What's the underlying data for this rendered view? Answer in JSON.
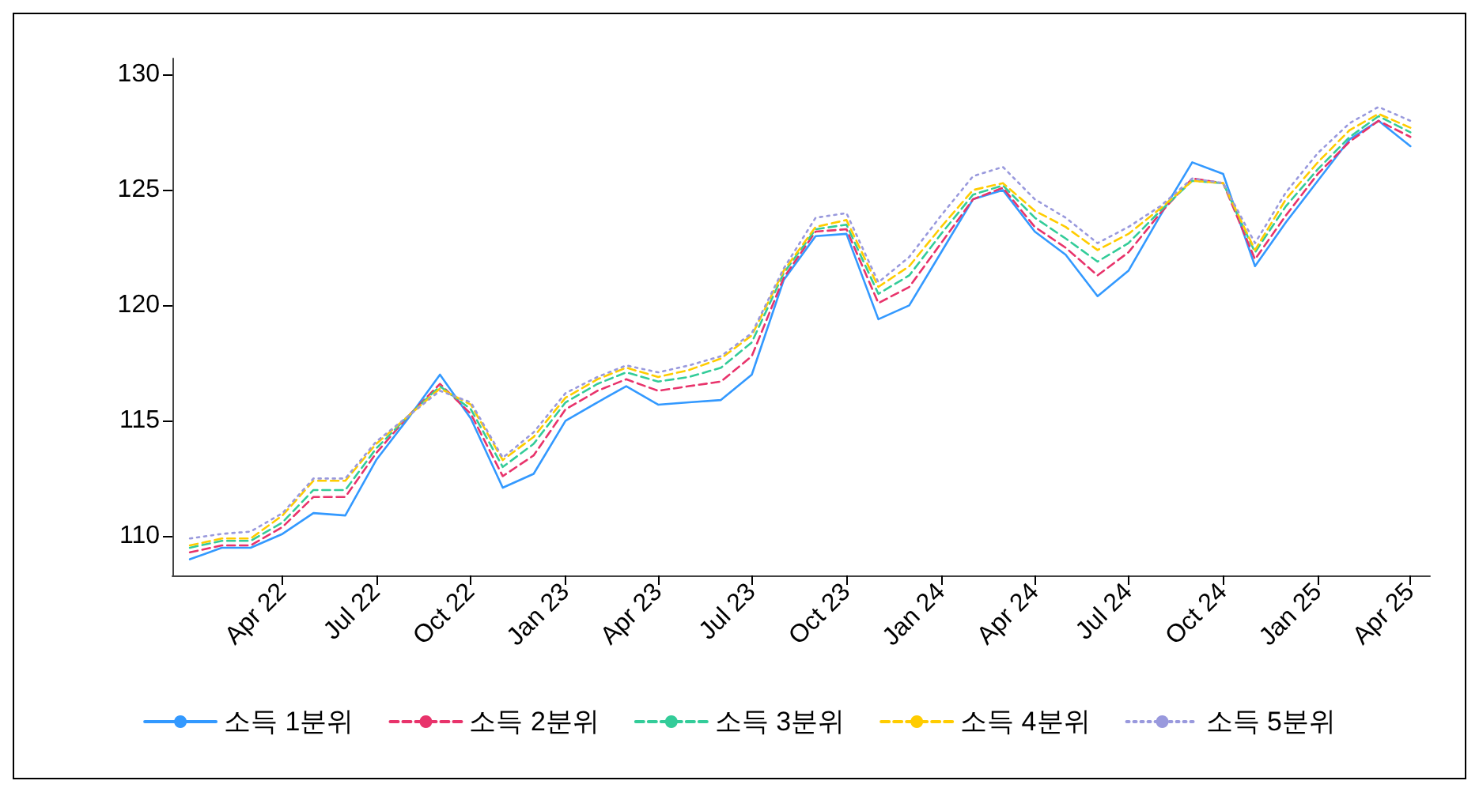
{
  "chart_data": {
    "type": "line",
    "x": [
      "2022-01",
      "2022-02",
      "2022-03",
      "2022-04",
      "2022-05",
      "2022-06",
      "2022-07",
      "2022-08",
      "2022-09",
      "2022-10",
      "2022-11",
      "2022-12",
      "2023-01",
      "2023-02",
      "2023-03",
      "2023-04",
      "2023-05",
      "2023-06",
      "2023-07",
      "2023-08",
      "2023-09",
      "2023-10",
      "2023-11",
      "2023-12",
      "2024-01",
      "2024-02",
      "2024-03",
      "2024-04",
      "2024-05",
      "2024-06",
      "2024-07",
      "2024-08",
      "2024-09",
      "2024-10",
      "2024-11",
      "2024-12",
      "2025-01",
      "2025-02",
      "2025-03",
      "2025-04"
    ],
    "series": [
      {
        "name": "소득 1분위",
        "color": "#3399ff",
        "line_style": "solid",
        "values": [
          109.0,
          109.5,
          109.5,
          110.1,
          111.0,
          110.9,
          113.3,
          115.1,
          117.0,
          115.1,
          112.1,
          112.7,
          115.0,
          115.8,
          116.5,
          115.7,
          115.8,
          115.9,
          117.0,
          121.1,
          123.0,
          123.1,
          119.4,
          120.0,
          122.3,
          124.6,
          125.0,
          123.2,
          122.2,
          120.4,
          121.5,
          123.9,
          126.2,
          125.7,
          121.7,
          123.6,
          125.4,
          127.2,
          128.0,
          126.9
        ]
      },
      {
        "name": "소득 2분위",
        "color": "#e8336b",
        "line_style": "dashed",
        "values": [
          109.3,
          109.6,
          109.6,
          110.4,
          111.7,
          111.7,
          113.6,
          115.2,
          116.6,
          115.3,
          112.6,
          113.5,
          115.5,
          116.3,
          116.8,
          116.3,
          116.5,
          116.7,
          117.8,
          121.2,
          123.2,
          123.3,
          120.1,
          120.8,
          122.7,
          124.6,
          125.1,
          123.4,
          122.5,
          121.3,
          122.3,
          124.0,
          125.5,
          125.3,
          122.0,
          123.9,
          125.7,
          127.1,
          128.0,
          127.3
        ]
      },
      {
        "name": "소득 3분위",
        "color": "#33cc99",
        "line_style": "dashed",
        "values": [
          109.5,
          109.8,
          109.8,
          110.6,
          112.0,
          112.0,
          113.8,
          115.2,
          116.5,
          115.5,
          113.0,
          114.0,
          115.8,
          116.6,
          117.1,
          116.7,
          116.9,
          117.3,
          118.4,
          121.4,
          123.3,
          123.5,
          120.5,
          121.3,
          123.1,
          124.8,
          125.2,
          123.8,
          122.9,
          121.9,
          122.7,
          124.1,
          125.4,
          125.3,
          122.3,
          124.3,
          125.9,
          127.3,
          128.2,
          127.5
        ]
      },
      {
        "name": "소득 4분위",
        "color": "#ffcc00",
        "line_style": "dashed",
        "values": [
          109.6,
          109.9,
          109.9,
          110.9,
          112.4,
          112.4,
          114.0,
          115.2,
          116.4,
          115.7,
          113.3,
          114.3,
          116.0,
          116.8,
          117.3,
          116.9,
          117.2,
          117.7,
          118.7,
          121.5,
          123.4,
          123.7,
          120.8,
          121.7,
          123.4,
          125.0,
          125.3,
          124.1,
          123.4,
          122.4,
          123.1,
          124.2,
          125.4,
          125.3,
          122.4,
          124.6,
          126.2,
          127.6,
          128.3,
          127.7
        ]
      },
      {
        "name": "소득 5분위",
        "color": "#9999dd",
        "line_style": "dotted",
        "values": [
          109.9,
          110.1,
          110.2,
          111.0,
          112.5,
          112.5,
          114.1,
          115.2,
          116.3,
          115.8,
          113.4,
          114.5,
          116.2,
          116.9,
          117.4,
          117.1,
          117.4,
          117.8,
          118.8,
          121.6,
          123.8,
          124.0,
          121.0,
          122.1,
          123.9,
          125.6,
          126.0,
          124.6,
          123.8,
          122.7,
          123.4,
          124.3,
          125.5,
          125.3,
          122.7,
          124.9,
          126.6,
          127.9,
          128.6,
          128.0
        ]
      }
    ],
    "xlim": [
      "2021-12-15",
      "2025-04-20"
    ],
    "xticks": [
      {
        "value": "2022-04",
        "label": "Apr 22"
      },
      {
        "value": "2022-07",
        "label": "Jul 22"
      },
      {
        "value": "2022-10",
        "label": "Oct 22"
      },
      {
        "value": "2023-01",
        "label": "Jan 23"
      },
      {
        "value": "2023-04",
        "label": "Apr 23"
      },
      {
        "value": "2023-07",
        "label": "Jul 23"
      },
      {
        "value": "2023-10",
        "label": "Oct 23"
      },
      {
        "value": "2024-01",
        "label": "Jan 24"
      },
      {
        "value": "2024-04",
        "label": "Apr 24"
      },
      {
        "value": "2024-07",
        "label": "Jul 24"
      },
      {
        "value": "2024-10",
        "label": "Oct 24"
      },
      {
        "value": "2025-01",
        "label": "Jan 25"
      },
      {
        "value": "2025-04",
        "label": "Apr 25"
      }
    ],
    "ylim": [
      108.3,
      130.7
    ],
    "yticks": [
      110,
      115,
      120,
      125,
      130
    ],
    "grid": false,
    "legend": "bottom",
    "marker": "none"
  }
}
